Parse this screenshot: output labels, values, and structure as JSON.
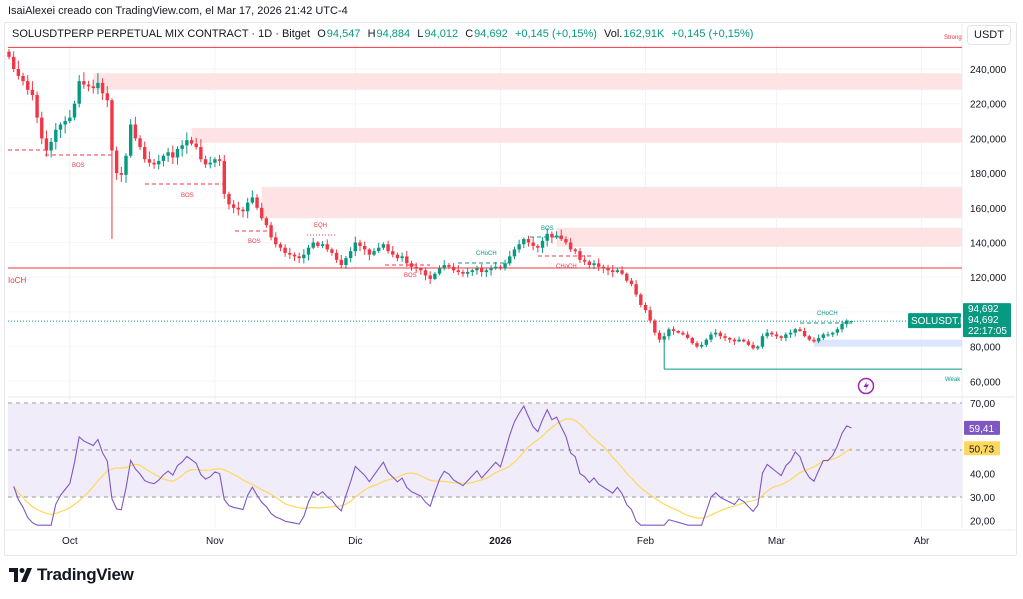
{
  "author_line": "IsaiAlexei creado con TradingView.com, el Mar 17, 2026 21:42 UTC-4",
  "legend": {
    "symbol": "SOLUSDTPERP PERPETUAL MIX CONTRACT · 1D · Bitget",
    "o_label": "O",
    "o": "94,547",
    "h_label": "H",
    "h": "94,884",
    "l_label": "L",
    "l": "94,012",
    "c_label": "C",
    "c": "94,692",
    "change": "+0,145 (+0,15%)",
    "vol_label": "Vol.",
    "vol": "162,91K",
    "vol_change": "+0,145 (+0,15%)"
  },
  "currency_button": "USDT",
  "price_tag": {
    "symbol": "SOLUSDT.P",
    "price": "94,692",
    "price2": "94,692",
    "countdown": "22:17:05"
  },
  "rsi_tags": {
    "rsi": "59,41",
    "rsi_ma": "50,73"
  },
  "colors": {
    "up": "#089981",
    "down": "#f23645",
    "supply_zone": "#fde3e4",
    "demand_zone": "#dbe6fd",
    "rsi": "#7e57c2",
    "rsi_ma": "#fdd85d",
    "rsi_band": "#f1ecfa"
  },
  "logo_text": "TradingView",
  "chart_data": [
    {
      "type": "candlestick",
      "ylim": [
        60,
        252
      ],
      "y_ticks": [
        "240,000",
        "220,000",
        "200,000",
        "180,000",
        "160,000",
        "140,000",
        "120,000",
        "100,000",
        "80,000",
        "60,000"
      ],
      "y_tick_values": [
        240,
        220,
        200,
        180,
        160,
        140,
        120,
        100,
        80,
        60
      ],
      "x_ticks": [
        {
          "label": "Oct",
          "date": "2025-10-01"
        },
        {
          "label": "Nov",
          "date": "2025-11-01"
        },
        {
          "label": "Dic",
          "date": "2025-12-01"
        },
        {
          "label": "2026",
          "date": "2026-01-01",
          "bold": true
        },
        {
          "label": "Feb",
          "date": "2026-02-01"
        },
        {
          "label": "Mar",
          "date": "2026-03-01"
        },
        {
          "label": "Abr",
          "date": "2026-04-01"
        }
      ],
      "closes_by_month": [
        {
          "month": "2025-09",
          "first_day": 18,
          "values": [
            247,
            240,
            236,
            233,
            228,
            225,
            212,
            200,
            193,
            198,
            205,
            208,
            210
          ]
        },
        {
          "month": "2025-10",
          "first_day": 1,
          "values": [
            212,
            220,
            233,
            231,
            230,
            229,
            232,
            226,
            222,
            193,
            180,
            179,
            190,
            208,
            200,
            195,
            188,
            186,
            185,
            187,
            190,
            192,
            189,
            194,
            196,
            199,
            197,
            195,
            188,
            185,
            186
          ]
        },
        {
          "month": "2025-11",
          "first_day": 1,
          "values": [
            188,
            187,
            168,
            162,
            160,
            159,
            158,
            163,
            166,
            160,
            154,
            150,
            143,
            139,
            137,
            134,
            133,
            132,
            131,
            133,
            137,
            140,
            138,
            139,
            136,
            134,
            130,
            127,
            131,
            135
          ]
        },
        {
          "month": "2025-12",
          "first_day": 1,
          "values": [
            140,
            138,
            136,
            133,
            135,
            137,
            139,
            135,
            133,
            131,
            132,
            128,
            126,
            125,
            124,
            121,
            119,
            122,
            125,
            127,
            126,
            124,
            123,
            122,
            123,
            124,
            125,
            123,
            124,
            125,
            126
          ]
        },
        {
          "month": "2026-01",
          "first_day": 1,
          "values": [
            125,
            128,
            132,
            136,
            139,
            142,
            140,
            138,
            137,
            141,
            145,
            143,
            144,
            142,
            140,
            136,
            135,
            130,
            129,
            127,
            128,
            126,
            125,
            124,
            123,
            124,
            122,
            118,
            116,
            110,
            104
          ]
        },
        {
          "month": "2026-02",
          "first_day": 1,
          "values": [
            101,
            95,
            88,
            84,
            86,
            90,
            89,
            88,
            87,
            85,
            82,
            80,
            81,
            84,
            87,
            88,
            86,
            85,
            84,
            83,
            84,
            83,
            81,
            79,
            80,
            86,
            88,
            87
          ]
        },
        {
          "month": "2026-03",
          "first_day": 1,
          "values": [
            86,
            85,
            87,
            88,
            90,
            89,
            86,
            84,
            83,
            85,
            87,
            87,
            88,
            90,
            93,
            95,
            94.692
          ]
        }
      ],
      "last_candle": {
        "open": 94.547,
        "high": 94.884,
        "low": 94.012,
        "close": 94.692
      },
      "extreme_wicks": [
        {
          "date": "2025-10-10",
          "low": 142
        }
      ],
      "current_price": 94.692,
      "zones": [
        {
          "kind": "supply",
          "from": "2025-10-06",
          "top": 237.5,
          "bottom": 228
        },
        {
          "kind": "supply",
          "from": "2025-10-27",
          "top": 206,
          "bottom": 197.5
        },
        {
          "kind": "supply",
          "from": "2025-11-11",
          "top": 172,
          "bottom": 154
        },
        {
          "kind": "supply",
          "from": "2026-01-13",
          "top": 148.5,
          "bottom": 137.5
        },
        {
          "kind": "demand",
          "from": "2026-03-09",
          "top": 84,
          "bottom": 80
        }
      ],
      "levels": [
        {
          "label": "Strong",
          "price": 252.5,
          "color": "#f23645"
        },
        {
          "label": "Weak",
          "price": 67,
          "color": "#089981",
          "from": "2026-02-05"
        },
        {
          "label": "IoCH",
          "price": 125.3,
          "color": "#f23645"
        }
      ],
      "structure_labels": [
        "BOS",
        "BOS",
        "BOS",
        "EQH",
        "BOS",
        "CHoCH",
        "BOS",
        "CHoCH",
        "CHoCH"
      ]
    },
    {
      "type": "line",
      "title": "RSI",
      "ylim": [
        15,
        72
      ],
      "y_ticks": [
        "70,00",
        "40,00",
        "30,00",
        "20,00"
      ],
      "y_tick_values": [
        70,
        40,
        30,
        20
      ],
      "band": [
        30,
        70
      ],
      "midline": 50,
      "series": [
        {
          "key": "rsi",
          "last": 59.41
        },
        {
          "key": "rsi_ma",
          "last": 50.73
        }
      ]
    }
  ]
}
